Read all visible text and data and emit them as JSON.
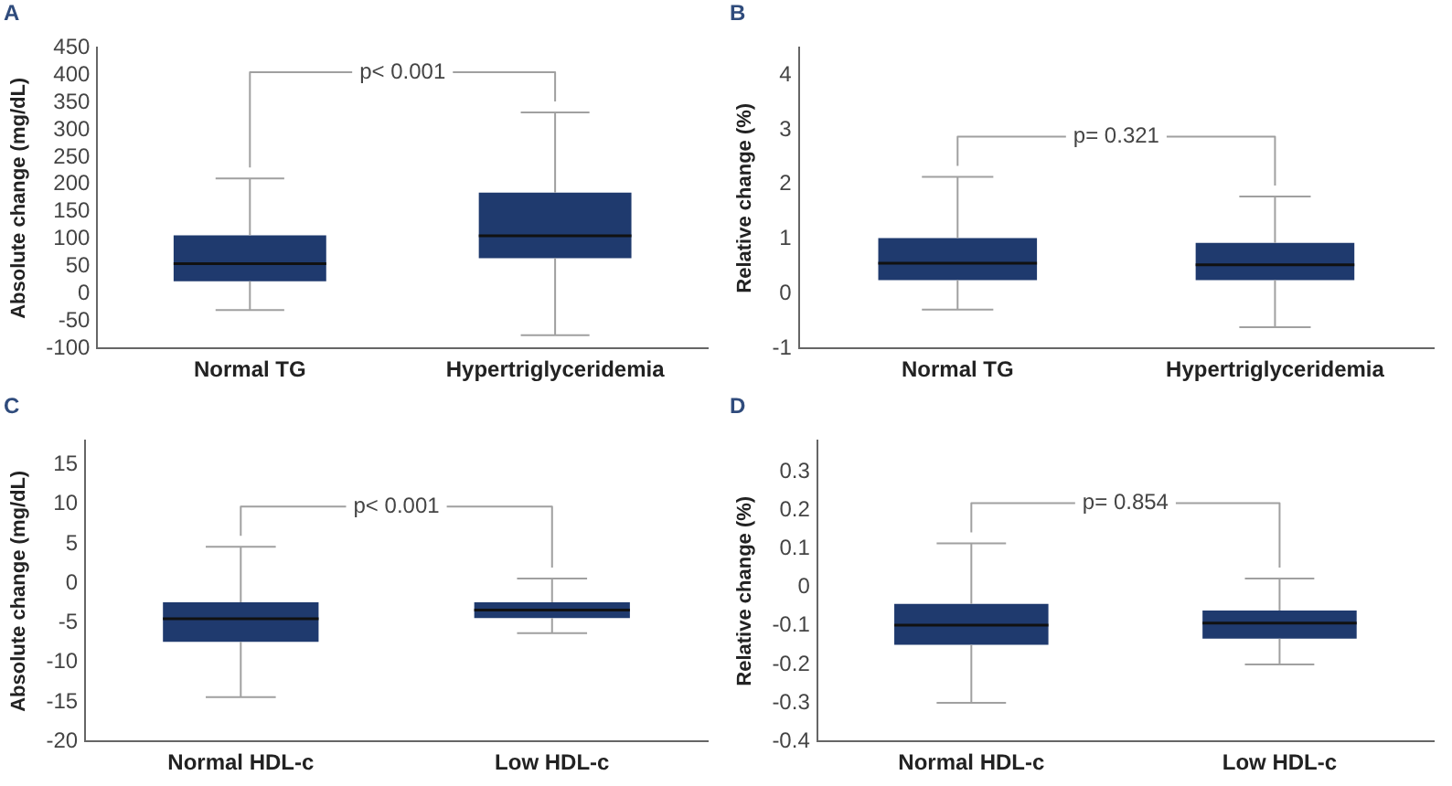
{
  "chart_data": [
    {
      "type": "box",
      "title": "A",
      "ylabel": "Absolute change (mg/dL)",
      "categories": [
        "Normal TG",
        "Hypertriglyceridemia"
      ],
      "color": "#1f3a6e",
      "ylim": [
        -100,
        450
      ],
      "yticks": [
        -100,
        -50,
        0,
        50,
        100,
        150,
        200,
        250,
        300,
        350,
        400,
        450
      ],
      "grid": false,
      "annotations": [
        "p< 0.001"
      ],
      "boxes": [
        {
          "low": -30,
          "q1": 23,
          "median": 55,
          "q3": 107,
          "high": 211
        },
        {
          "low": -76,
          "q1": 65,
          "median": 106,
          "q3": 185,
          "high": 332
        }
      ]
    },
    {
      "type": "box",
      "title": "B",
      "ylabel": "Relative change (%)",
      "categories": [
        "Normal TG",
        "Hypertriglyceridemia"
      ],
      "color": "#1f3a6e",
      "ylim": [
        -1,
        4.5
      ],
      "yticks": [
        -1,
        0,
        1,
        2,
        3,
        4
      ],
      "grid": false,
      "annotations": [
        "p= 0.321"
      ],
      "boxes": [
        {
          "low": -0.29,
          "q1": 0.25,
          "median": 0.56,
          "q3": 1.02,
          "high": 2.14
        },
        {
          "low": -0.61,
          "q1": 0.25,
          "median": 0.53,
          "q3": 0.93,
          "high": 1.78
        }
      ]
    },
    {
      "type": "box",
      "title": "C",
      "ylabel": "Absolute change (mg/dL)",
      "categories": [
        "Normal HDL-c",
        "Low HDL-c"
      ],
      "color": "#1f3a6e",
      "ylim": [
        -20,
        18
      ],
      "yticks": [
        -20,
        -15,
        -10,
        -5,
        0,
        5,
        10,
        15
      ],
      "grid": false,
      "annotations": [
        "p< 0.001"
      ],
      "boxes": [
        {
          "low": -14.4,
          "q1": -7.4,
          "median": -4.5,
          "q3": -2.4,
          "high": 4.6
        },
        {
          "low": -6.3,
          "q1": -4.4,
          "median": -3.4,
          "q3": -2.4,
          "high": 0.6
        }
      ]
    },
    {
      "type": "box",
      "title": "D",
      "ylabel": "Relative change (%)",
      "categories": [
        "Normal HDL-c",
        "Low HDL-c"
      ],
      "color": "#1f3a6e",
      "ylim": [
        -0.4,
        0.38
      ],
      "yticks": [
        -0.4,
        -0.3,
        -0.2,
        -0.1,
        0,
        0.1,
        0.2,
        0.3
      ],
      "grid": false,
      "annotations": [
        "p= 0.854"
      ],
      "boxes": [
        {
          "low": -0.3,
          "q1": -0.149,
          "median": -0.098,
          "q3": -0.043,
          "high": 0.114
        },
        {
          "low": -0.2,
          "q1": -0.133,
          "median": -0.093,
          "q3": -0.06,
          "high": 0.023
        }
      ]
    }
  ]
}
